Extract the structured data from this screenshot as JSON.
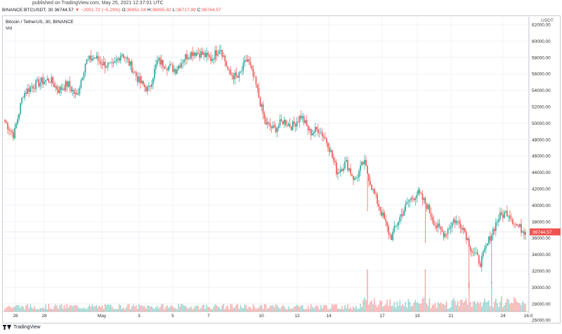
{
  "header": {
    "published": "published on TradingView.com, May 25, 2021 12:37:01 UTC",
    "symbol": "BINANCE:BTCUSDT, 30",
    "last": "36744.57",
    "change": "▼ −2051.72 (−5.29%)",
    "o_label": "O:",
    "o_value": "36951.04",
    "h_label": "H:",
    "h_value": "36955.82",
    "l_label": "L:",
    "l_value": "36717.99",
    "c_label": "C:",
    "c_value": "36744.57"
  },
  "legend": {
    "title": "Bitcoin / TetherUS, 30, BINANCE",
    "volume": "Vol"
  },
  "currency": "USDT",
  "footer": {
    "brand": "TradingView",
    "logo_icon": "tradingview-logo-icon"
  },
  "colors": {
    "up": "#26a69a",
    "down": "#ef5350",
    "price_label": "#ef5350",
    "grid": "#f0f3fa"
  },
  "chart_data": {
    "type": "candlestick",
    "y_tick_labels": [
      "26000.00",
      "28000.00",
      "30000.00",
      "32000.00",
      "34000.00",
      "36000.00",
      "38000.00",
      "40000.00",
      "42000.00",
      "44000.00",
      "46000.00",
      "48000.00",
      "50000.00",
      "52000.00",
      "54000.00",
      "56000.00",
      "58000.00",
      "60000.00",
      "62000.00"
    ],
    "x_tick_labels": [
      "26",
      "28",
      "May",
      "3",
      "5",
      "7",
      "10",
      "12",
      "14",
      "17",
      "19",
      "21",
      "24",
      "16:0"
    ],
    "ylim": [
      25500,
      63000
    ],
    "last_price_label": "36744.57",
    "close_path": [
      [
        "Apr 25",
        50200
      ],
      [
        "Apr 25",
        48500
      ],
      [
        "Apr 26",
        53500
      ],
      [
        "Apr 26",
        54500
      ],
      [
        "Apr 27",
        55000
      ],
      [
        "Apr 28",
        55300
      ],
      [
        "Apr 28",
        54000
      ],
      [
        "Apr 29",
        54800
      ],
      [
        "Apr 30",
        53200
      ],
      [
        "Apr 30",
        57500
      ],
      [
        "May 1",
        58000
      ],
      [
        "May 1",
        57200
      ],
      [
        "May 2",
        56800
      ],
      [
        "May 3",
        58600
      ],
      [
        "May 3",
        57000
      ],
      [
        "May 4",
        55000
      ],
      [
        "May 4",
        54000
      ],
      [
        "May 5",
        57600
      ],
      [
        "May 6",
        57000
      ],
      [
        "May 6",
        56500
      ],
      [
        "May 7",
        58000
      ],
      [
        "May 8",
        58700
      ],
      [
        "May 9",
        58400
      ],
      [
        "May 9",
        57800
      ],
      [
        "May 10",
        59300
      ],
      [
        "May 10",
        56000
      ],
      [
        "May 11",
        55500
      ],
      [
        "May 12",
        57900
      ],
      [
        "May 12",
        54500
      ],
      [
        "May 13",
        50000
      ],
      [
        "May 13",
        49200
      ],
      [
        "May 14",
        50300
      ],
      [
        "May 14",
        49600
      ],
      [
        "May 15",
        50900
      ],
      [
        "May 15",
        48800
      ],
      [
        "May 16",
        49300
      ],
      [
        "May 16",
        47500
      ],
      [
        "May 17",
        44000
      ],
      [
        "May 17",
        45200
      ],
      [
        "May 18",
        43000
      ],
      [
        "May 18",
        45300
      ],
      [
        "May 19",
        41800
      ],
      [
        "May 19",
        39000
      ],
      [
        "May 19",
        36000
      ],
      [
        "May 20",
        38500
      ],
      [
        "May 20",
        40500
      ],
      [
        "May 21",
        41500
      ],
      [
        "May 21",
        40000
      ],
      [
        "May 21",
        37500
      ],
      [
        "May 22",
        36500
      ],
      [
        "May 22",
        38200
      ],
      [
        "May 23",
        37500
      ],
      [
        "May 23",
        34500
      ],
      [
        "May 23",
        33000
      ],
      [
        "May 24",
        36000
      ],
      [
        "May 24",
        38500
      ],
      [
        "May 24",
        39200
      ],
      [
        "May 25",
        37500
      ],
      [
        "May 25",
        36744.57
      ]
    ]
  }
}
